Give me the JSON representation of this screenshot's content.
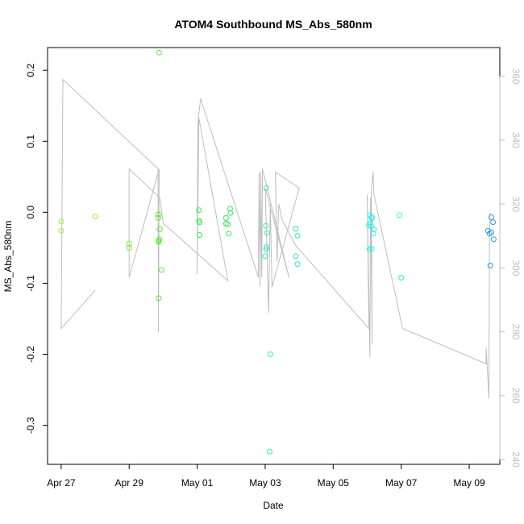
{
  "chart_data": {
    "type": "scatter",
    "title": "ATOM4 Southbound MS_Abs_580nm",
    "xlabel": "Date",
    "ylabel": "MS_Abs_580nm",
    "x_ticks": [
      "Apr 27",
      "Apr 29",
      "May 01",
      "May 03",
      "May 05",
      "May 07",
      "May 09"
    ],
    "x_tick_days": [
      27,
      29,
      31,
      33,
      35,
      37,
      39
    ],
    "xlim_days": [
      26.6,
      39.9
    ],
    "ylim": [
      -0.355,
      0.232
    ],
    "y_ticks": [
      "-0.3",
      "-0.2",
      "-0.1",
      "0.0",
      "0.1",
      "0.2"
    ],
    "y_tick_values": [
      -0.3,
      -0.2,
      -0.1,
      0.0,
      0.1,
      0.2
    ],
    "y2_ticks": [
      "240",
      "260",
      "280",
      "300",
      "320",
      "340",
      "360"
    ],
    "y2_tick_values": [
      240,
      260,
      280,
      300,
      320,
      340,
      360
    ],
    "y2lim": [
      238.5,
      369
    ],
    "grid": false,
    "legend": "none",
    "colors": {
      "line": "#bebebe",
      "axis": "#000000",
      "right_axis": "#bdbdbd"
    },
    "points": [
      {
        "x": 27.0,
        "y": -0.013,
        "color": "#99ee33"
      },
      {
        "x": 27.0,
        "y": -0.026,
        "color": "#99ee33"
      },
      {
        "x": 28.0,
        "y": -0.006,
        "color": "#99ee33"
      },
      {
        "x": 29.0,
        "y": -0.044,
        "color": "#77ee33"
      },
      {
        "x": 29.0,
        "y": -0.05,
        "color": "#77ee33"
      },
      {
        "x": 29.88,
        "y": 0.225,
        "color": "#55ee33"
      },
      {
        "x": 29.86,
        "y": -0.003,
        "color": "#55ee33"
      },
      {
        "x": 29.86,
        "y": -0.008,
        "color": "#55ee33"
      },
      {
        "x": 29.9,
        "y": -0.024,
        "color": "#55ee33"
      },
      {
        "x": 29.87,
        "y": -0.04,
        "color": "#55ee33"
      },
      {
        "x": 29.89,
        "y": -0.038,
        "color": "#55ee33"
      },
      {
        "x": 29.86,
        "y": -0.042,
        "color": "#55ee33"
      },
      {
        "x": 29.95,
        "y": -0.081,
        "color": "#55ee33"
      },
      {
        "x": 29.87,
        "y": -0.121,
        "color": "#55ee33"
      },
      {
        "x": 31.05,
        "y": 0.003,
        "color": "#33ee44"
      },
      {
        "x": 31.05,
        "y": -0.012,
        "color": "#33ee44"
      },
      {
        "x": 31.07,
        "y": -0.014,
        "color": "#33ee44"
      },
      {
        "x": 31.07,
        "y": -0.032,
        "color": "#33ee44"
      },
      {
        "x": 31.85,
        "y": -0.008,
        "color": "#33ee55"
      },
      {
        "x": 31.85,
        "y": -0.016,
        "color": "#33ee55"
      },
      {
        "x": 31.9,
        "y": -0.017,
        "color": "#33ee55"
      },
      {
        "x": 31.97,
        "y": 0.005,
        "color": "#33ee55"
      },
      {
        "x": 31.98,
        "y": -0.001,
        "color": "#33ee55"
      },
      {
        "x": 31.93,
        "y": -0.03,
        "color": "#33ee55"
      },
      {
        "x": 33.03,
        "y": 0.034,
        "color": "#33eebb"
      },
      {
        "x": 33.02,
        "y": -0.019,
        "color": "#33eebb"
      },
      {
        "x": 33.05,
        "y": -0.029,
        "color": "#33eebb"
      },
      {
        "x": 33.04,
        "y": -0.049,
        "color": "#33eebb"
      },
      {
        "x": 33.03,
        "y": -0.052,
        "color": "#33eebb"
      },
      {
        "x": 33.0,
        "y": -0.062,
        "color": "#33eebb"
      },
      {
        "x": 33.15,
        "y": -0.2,
        "color": "#33eebb"
      },
      {
        "x": 33.13,
        "y": -0.337,
        "color": "#33eebb"
      },
      {
        "x": 33.9,
        "y": -0.023,
        "color": "#33eeaa"
      },
      {
        "x": 33.95,
        "y": -0.033,
        "color": "#33eeaa"
      },
      {
        "x": 33.9,
        "y": -0.062,
        "color": "#33eeaa"
      },
      {
        "x": 33.95,
        "y": -0.073,
        "color": "#33eeaa"
      },
      {
        "x": 36.08,
        "y": -0.004,
        "color": "#33eeee"
      },
      {
        "x": 36.12,
        "y": -0.007,
        "color": "#33eeee"
      },
      {
        "x": 36.15,
        "y": -0.008,
        "color": "#33eeee"
      },
      {
        "x": 36.1,
        "y": -0.015,
        "color": "#33eeee"
      },
      {
        "x": 36.05,
        "y": -0.018,
        "color": "#33eeee"
      },
      {
        "x": 36.12,
        "y": -0.02,
        "color": "#33eeee"
      },
      {
        "x": 36.2,
        "y": -0.024,
        "color": "#33eeee"
      },
      {
        "x": 36.18,
        "y": -0.03,
        "color": "#33eeee"
      },
      {
        "x": 36.07,
        "y": -0.052,
        "color": "#33eeee"
      },
      {
        "x": 36.13,
        "y": -0.051,
        "color": "#33eeee"
      },
      {
        "x": 36.95,
        "y": -0.004,
        "color": "#33eedd"
      },
      {
        "x": 37.0,
        "y": -0.092,
        "color": "#33eedd"
      },
      {
        "x": 39.65,
        "y": -0.007,
        "color": "#3399ee"
      },
      {
        "x": 39.7,
        "y": -0.014,
        "color": "#3399ee"
      },
      {
        "x": 39.55,
        "y": -0.026,
        "color": "#3399ee"
      },
      {
        "x": 39.65,
        "y": -0.028,
        "color": "#3399ee"
      },
      {
        "x": 39.6,
        "y": -0.03,
        "color": "#3399ee"
      },
      {
        "x": 39.72,
        "y": -0.038,
        "color": "#3399ee"
      },
      {
        "x": 39.62,
        "y": -0.075,
        "color": "#3399ee"
      }
    ],
    "line_series": {
      "name": "",
      "axis": "right",
      "x": [
        28.0,
        27.0,
        27.05,
        29.85,
        29.86,
        29.88,
        29.0,
        29.0,
        29.9,
        30.0,
        31.9,
        31.05,
        31.0,
        31.02,
        31.1,
        32.8,
        32.82,
        32.85,
        32.87,
        32.9,
        32.92,
        33.7,
        33.0,
        33.1,
        33.15,
        33.2,
        34.0,
        33.3,
        33.35,
        33.4,
        33.5,
        33.9,
        36.05,
        36.0,
        36.08,
        36.1,
        36.15,
        36.12,
        36.17,
        36.2,
        37.0,
        37.05,
        39.5,
        39.5,
        39.58,
        39.6,
        39.65
      ],
      "y": [
        293,
        281,
        359,
        331,
        280,
        331,
        297,
        331,
        322,
        314,
        296,
        347,
        298,
        345,
        353,
        297,
        330,
        294,
        330,
        297,
        331,
        297,
        325,
        286,
        320,
        294,
        325,
        330,
        302,
        320,
        315,
        307,
        281,
        323,
        272,
        322,
        276,
        324,
        330,
        323,
        283,
        281,
        270,
        275,
        259,
        317,
        317
      ]
    }
  }
}
